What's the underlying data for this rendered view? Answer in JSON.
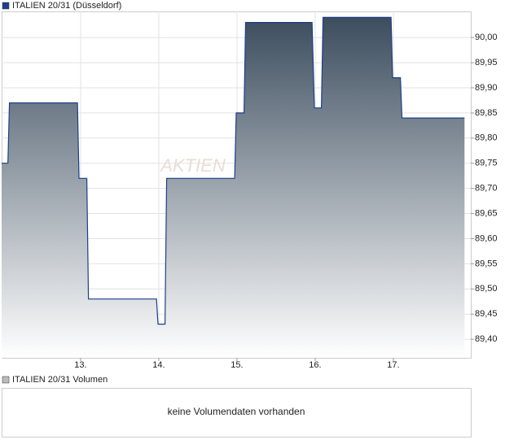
{
  "chart_data": {
    "type": "line",
    "watermark": "AKTIEN",
    "series": [
      {
        "name": "ITALIEN 20/31 (Düsseldorf)",
        "color": "#1d3f8a",
        "x": [
          11.99,
          12.07,
          12.09,
          12.96,
          12.98,
          13.08,
          13.1,
          13.97,
          13.99,
          14.08,
          14.1,
          14.97,
          14.99,
          15.09,
          15.11,
          15.96,
          15.99,
          16.08,
          16.1,
          16.97,
          16.99,
          17.09,
          17.11,
          17.91
        ],
        "values": [
          89.75,
          89.75,
          89.87,
          89.87,
          89.72,
          89.72,
          89.48,
          89.48,
          89.43,
          89.43,
          89.72,
          89.72,
          89.85,
          89.85,
          90.03,
          90.03,
          89.86,
          89.86,
          90.04,
          90.04,
          89.92,
          89.92,
          89.84,
          89.84
        ]
      }
    ],
    "xlim": [
      11.99,
      17.99
    ],
    "xticks": [
      {
        "value": 13,
        "label": "13."
      },
      {
        "value": 14,
        "label": "14."
      },
      {
        "value": 15,
        "label": "15."
      },
      {
        "value": 16,
        "label": "16."
      },
      {
        "value": 17,
        "label": "17."
      }
    ],
    "ylim": [
      89.363,
      90.052
    ],
    "yticks": [
      {
        "value": 89.4,
        "label": "89,40"
      },
      {
        "value": 89.45,
        "label": "89,45"
      },
      {
        "value": 89.5,
        "label": "89,50"
      },
      {
        "value": 89.55,
        "label": "89,55"
      },
      {
        "value": 89.6,
        "label": "89,60"
      },
      {
        "value": 89.65,
        "label": "89,65"
      },
      {
        "value": 89.7,
        "label": "89,70"
      },
      {
        "value": 89.75,
        "label": "89,75"
      },
      {
        "value": 89.8,
        "label": "89,80"
      },
      {
        "value": 89.85,
        "label": "89,85"
      },
      {
        "value": 89.9,
        "label": "89,90"
      },
      {
        "value": 89.95,
        "label": "89,95"
      },
      {
        "value": 90,
        "label": "90,00"
      }
    ],
    "grid": true
  },
  "volume_panel": {
    "legend": "ITALIEN 20/31 Volumen",
    "color": "#bbbbbb",
    "message": "keine Volumendaten vorhanden"
  }
}
